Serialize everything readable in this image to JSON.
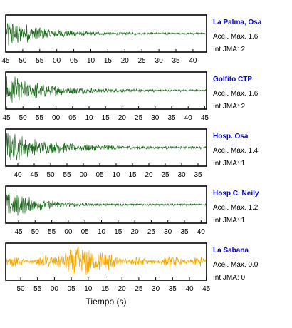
{
  "chart_data": [
    {
      "type": "line",
      "station": "La Palma, Osa",
      "accel_label": "Acel. Max. 1.6",
      "jma_label": "Int JMA: 2",
      "x_tick_labels": [
        "45",
        "50",
        "55",
        "00",
        "05",
        "10",
        "15",
        "20",
        "25",
        "30",
        "35",
        "40"
      ],
      "trace_color": "#1f6b1f",
      "name_color": "#0000cc",
      "amplitude": 1.6,
      "decay": 6.0,
      "envelope": "decay"
    },
    {
      "type": "line",
      "station": "Golfito CTP",
      "accel_label": "Acel. Max. 1.6",
      "jma_label": "Int JMA: 2",
      "x_tick_labels": [
        "45",
        "50",
        "55",
        "00",
        "05",
        "10",
        "15",
        "20",
        "25",
        "30",
        "35",
        "40",
        "45"
      ],
      "trace_color": "#1f6b1f",
      "name_color": "#0000cc",
      "amplitude": 1.6,
      "decay": 5.0,
      "envelope": "decay"
    },
    {
      "type": "line",
      "station": "Hosp. Osa",
      "accel_label": "Acel. Max. 1.4",
      "jma_label": "Int JMA: 1",
      "x_tick_labels": [
        "40",
        "45",
        "50",
        "55",
        "00",
        "05",
        "10",
        "15",
        "20",
        "25",
        "30",
        "35"
      ],
      "trace_color": "#1f6b1f",
      "name_color": "#0000cc",
      "amplitude": 1.4,
      "decay": 4.5,
      "envelope": "decay"
    },
    {
      "type": "line",
      "station": "Hosp C. Neily",
      "accel_label": "Acel. Max. 1.2",
      "jma_label": "Int JMA: 1",
      "x_tick_labels": [
        "45",
        "50",
        "55",
        "00",
        "05",
        "10",
        "15",
        "20",
        "25",
        "30",
        "35",
        "40"
      ],
      "trace_color": "#1f6b1f",
      "name_color": "#0000cc",
      "amplitude": 1.2,
      "decay": 7.0,
      "envelope": "decay"
    },
    {
      "type": "line",
      "station": "La Sabana",
      "accel_label": "Acel. Max. 0.0",
      "jma_label": "Int JMA: 0",
      "x_tick_labels": [
        "50",
        "55",
        "00",
        "05",
        "10",
        "15",
        "20",
        "25",
        "30",
        "35",
        "40",
        "45"
      ],
      "trace_color": "#f5a800",
      "name_color": "#0000cc",
      "amplitude": 0.0,
      "decay": 0,
      "envelope": "burst"
    }
  ],
  "xlabel": "Tiempo (s)"
}
